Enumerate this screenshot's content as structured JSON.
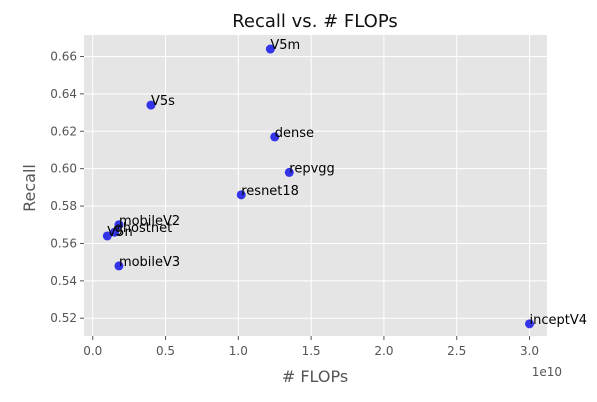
{
  "chart_data": {
    "type": "scatter",
    "title": "Recall vs. # FLOPs",
    "xlabel": "# FLOPs",
    "ylabel": "Recall",
    "x_offset_label": "1e10",
    "xlim": [
      -0.06,
      3.12
    ],
    "ylim": [
      0.5105,
      0.6715
    ],
    "x_scale": 10000000000.0,
    "x_ticks": [
      "0.0",
      "0.5",
      "1.0",
      "1.5",
      "2.0",
      "2.5",
      "3.0"
    ],
    "x_tick_values": [
      0.0,
      0.5,
      1.0,
      1.5,
      2.0,
      2.5,
      3.0
    ],
    "y_ticks": [
      "0.52",
      "0.54",
      "0.56",
      "0.58",
      "0.60",
      "0.62",
      "0.64",
      "0.66"
    ],
    "y_tick_values": [
      0.52,
      0.54,
      0.56,
      0.58,
      0.6,
      0.62,
      0.64,
      0.66
    ],
    "grid": true,
    "background": "#e5e5e5",
    "point_color": "#1f1fe8",
    "points": [
      {
        "label": "V5m",
        "x": 1.22,
        "y": 0.664
      },
      {
        "label": "V5s",
        "x": 0.4,
        "y": 0.634
      },
      {
        "label": "dense",
        "x": 1.25,
        "y": 0.617
      },
      {
        "label": "repvgg",
        "x": 1.35,
        "y": 0.598
      },
      {
        "label": "resnet18",
        "x": 1.02,
        "y": 0.586
      },
      {
        "label": "mobileV2",
        "x": 0.18,
        "y": 0.57
      },
      {
        "label": "ghostnet",
        "x": 0.15,
        "y": 0.566
      },
      {
        "label": "V5n",
        "x": 0.1,
        "y": 0.564
      },
      {
        "label": "mobileV3",
        "x": 0.18,
        "y": 0.548
      },
      {
        "label": "inceptV4",
        "x": 3.0,
        "y": 0.517
      }
    ]
  }
}
